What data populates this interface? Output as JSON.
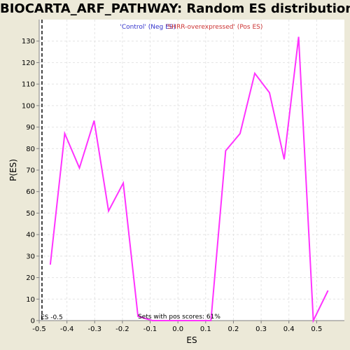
{
  "chart_data": {
    "type": "line",
    "title": "BIOCARTA_ARF_PATHWAY: Random ES distribution",
    "xlabel": "ES",
    "ylabel": "P(ES)",
    "xlim": [
      -0.5,
      0.6
    ],
    "ylim": [
      0,
      140
    ],
    "xticks": [
      -0.5,
      -0.4,
      -0.3,
      -0.2,
      -0.1,
      0.0,
      0.1,
      0.2,
      0.3,
      0.4,
      0.5
    ],
    "xtick_labels": [
      "-0.5",
      "-0.4",
      "-0.3",
      "-0.2",
      "-0.1",
      "0.0",
      "0.1",
      "0.2",
      "0.3",
      "0.4",
      "0.5"
    ],
    "yticks": [
      0,
      10,
      20,
      30,
      40,
      50,
      60,
      70,
      80,
      90,
      100,
      110,
      120,
      130
    ],
    "ytick_labels": [
      "0",
      "10",
      "20",
      "30",
      "40",
      "50",
      "60",
      "70",
      "80",
      "90",
      "100",
      "110",
      "120",
      "130"
    ],
    "grid": true,
    "legend": [
      {
        "label": "'Control' (Neg ES)",
        "color": "#3333CC"
      },
      {
        "label": "'SHRR-overexpressed' (Pos ES)",
        "color": "#CC3333"
      }
    ],
    "series": [
      {
        "color": "#FF33FF",
        "x": [
          -0.46,
          -0.408,
          -0.355,
          -0.302,
          -0.25,
          -0.197,
          -0.144,
          -0.092,
          -0.039,
          0.014,
          0.066,
          0.119,
          0.172,
          0.224,
          0.277,
          0.33,
          0.383,
          0.435,
          0.488,
          0.541
        ],
        "y": [
          26,
          87,
          71,
          93,
          51,
          64,
          2,
          0,
          0,
          0,
          0,
          0,
          79,
          87,
          115,
          106,
          75,
          132,
          0,
          14
        ]
      }
    ],
    "es_marker": {
      "x": -0.49,
      "label": "ES -0.5"
    },
    "annotation": "Sets with pos scores: 61%"
  }
}
